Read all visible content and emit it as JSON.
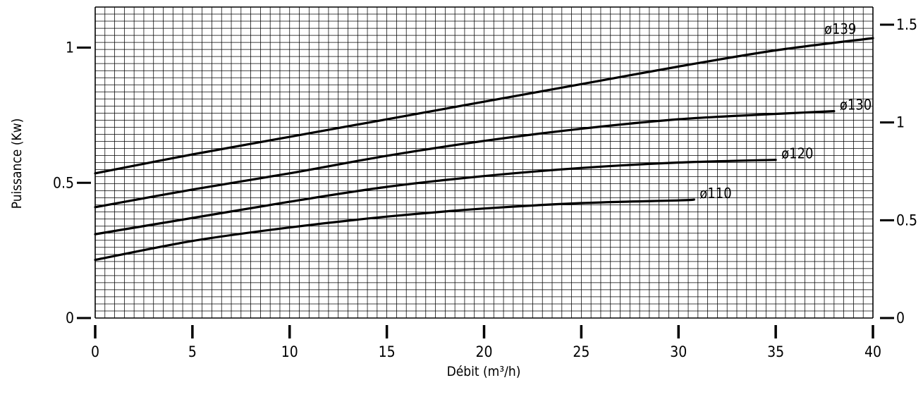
{
  "chart_data": {
    "type": "line",
    "title": "",
    "xlabel": "Débit (m³/h)",
    "ylabel": "Puissance (Kw)",
    "xlim": [
      0,
      40
    ],
    "ylim": [
      0,
      1.15
    ],
    "y2lim": [
      0,
      1.59
    ],
    "grid": true,
    "x_ticks": [
      "0",
      "5",
      "10",
      "15",
      "20",
      "25",
      "30",
      "35",
      "40"
    ],
    "y_ticks": [
      "0",
      "0.5",
      "1"
    ],
    "y2_ticks": [
      "0",
      "0.5",
      "1",
      "1.5"
    ],
    "series": [
      {
        "name": "ø139",
        "x": [
          0,
          5,
          10,
          15,
          20,
          25,
          30,
          35,
          40
        ],
        "y": [
          0.535,
          0.605,
          0.67,
          0.735,
          0.8,
          0.865,
          0.93,
          0.99,
          1.035
        ]
      },
      {
        "name": "ø130",
        "x": [
          0,
          5,
          10,
          15,
          20,
          25,
          30,
          35,
          38
        ],
        "y": [
          0.41,
          0.475,
          0.535,
          0.6,
          0.655,
          0.7,
          0.735,
          0.755,
          0.765
        ]
      },
      {
        "name": "ø120",
        "x": [
          0,
          5,
          10,
          15,
          20,
          25,
          30,
          35
        ],
        "y": [
          0.31,
          0.37,
          0.43,
          0.485,
          0.525,
          0.555,
          0.575,
          0.585
        ]
      },
      {
        "name": "ø110",
        "x": [
          0,
          5,
          10,
          15,
          20,
          25,
          30,
          30.8
        ],
        "y": [
          0.215,
          0.285,
          0.335,
          0.375,
          0.405,
          0.425,
          0.435,
          0.438
        ]
      }
    ]
  }
}
